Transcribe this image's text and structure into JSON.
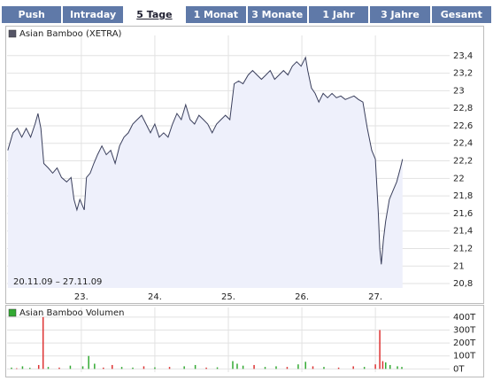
{
  "tabs": {
    "items": [
      "Push",
      "Intraday",
      "5 Tage",
      "1 Monat",
      "3 Monate",
      "1 Jahr",
      "3 Jahre",
      "Gesamt"
    ],
    "active": 2
  },
  "chart_data": [
    {
      "type": "line",
      "date_range": "20.11.09 – 27.11.09",
      "xlim": [
        21.99,
        28.01
      ],
      "xticks": [
        {
          "value": 23,
          "label": "23."
        },
        {
          "value": 24,
          "label": "24."
        },
        {
          "value": 25,
          "label": "25."
        },
        {
          "value": 26,
          "label": "26."
        },
        {
          "value": 27,
          "label": "27."
        }
      ],
      "ylim": [
        20.75,
        23.58
      ],
      "yticks": [
        {
          "value": 20.8,
          "label": "20,8"
        },
        {
          "value": 21,
          "label": "21"
        },
        {
          "value": 21.2,
          "label": "21,2"
        },
        {
          "value": 21.4,
          "label": "21,4"
        },
        {
          "value": 21.6,
          "label": "21,6"
        },
        {
          "value": 21.8,
          "label": "21,8"
        },
        {
          "value": 22,
          "label": "22"
        },
        {
          "value": 22.2,
          "label": "22,2"
        },
        {
          "value": 22.4,
          "label": "22,4"
        },
        {
          "value": 22.6,
          "label": "22,6"
        },
        {
          "value": 22.8,
          "label": "22,8"
        },
        {
          "value": 23,
          "label": "23"
        },
        {
          "value": 23.2,
          "label": "23,2"
        },
        {
          "value": 23.4,
          "label": "23,4"
        }
      ],
      "grid": true,
      "x": [
        22.0,
        22.07,
        22.13,
        22.19,
        22.25,
        22.31,
        22.37,
        22.41,
        22.45,
        22.49,
        22.55,
        22.61,
        22.67,
        22.73,
        22.8,
        22.86,
        22.9,
        22.94,
        22.98,
        23.04,
        23.07,
        23.12,
        23.17,
        23.22,
        23.28,
        23.34,
        23.4,
        23.46,
        23.52,
        23.58,
        23.64,
        23.7,
        23.76,
        23.82,
        23.88,
        23.94,
        24.0,
        24.06,
        24.12,
        24.18,
        24.24,
        24.3,
        24.36,
        24.42,
        24.48,
        24.54,
        24.6,
        24.66,
        24.72,
        24.78,
        24.84,
        24.9,
        24.96,
        25.02,
        25.08,
        25.14,
        25.2,
        25.27,
        25.33,
        25.39,
        25.45,
        25.51,
        25.57,
        25.63,
        25.69,
        25.75,
        25.81,
        25.87,
        25.93,
        25.99,
        26.05,
        26.08,
        26.13,
        26.18,
        26.23,
        26.29,
        26.35,
        26.41,
        26.47,
        26.53,
        26.59,
        26.65,
        26.71,
        26.77,
        26.83,
        26.89,
        26.95,
        27.0,
        27.04,
        27.06,
        27.08,
        27.11,
        27.14,
        27.19,
        27.24,
        27.29,
        27.34,
        27.37
      ],
      "series": [
        {
          "name": "Asian Bamboo (XETRA)",
          "color": "#3a3f5c",
          "fill": "#eef0fb",
          "legend_color": "#555566",
          "values": [
            22.32,
            22.52,
            22.57,
            22.47,
            22.57,
            22.47,
            22.62,
            22.74,
            22.57,
            22.17,
            22.12,
            22.06,
            22.12,
            22.01,
            21.96,
            22.01,
            21.76,
            21.64,
            21.76,
            21.64,
            22.01,
            22.06,
            22.17,
            22.27,
            22.37,
            22.27,
            22.32,
            22.17,
            22.37,
            22.47,
            22.52,
            22.62,
            22.67,
            22.72,
            22.62,
            22.52,
            22.62,
            22.47,
            22.52,
            22.47,
            22.62,
            22.74,
            22.67,
            22.84,
            22.67,
            22.62,
            22.72,
            22.67,
            22.62,
            22.52,
            22.62,
            22.67,
            22.72,
            22.67,
            23.08,
            23.11,
            23.08,
            23.18,
            23.23,
            23.18,
            23.13,
            23.18,
            23.23,
            23.13,
            23.18,
            23.23,
            23.18,
            23.28,
            23.33,
            23.28,
            23.38,
            23.23,
            23.03,
            22.97,
            22.87,
            22.97,
            22.92,
            22.97,
            22.92,
            22.94,
            22.9,
            22.92,
            22.94,
            22.9,
            22.87,
            22.57,
            22.32,
            22.22,
            21.61,
            21.2,
            21.02,
            21.3,
            21.51,
            21.76,
            21.86,
            21.96,
            22.12,
            22.22
          ]
        }
      ]
    },
    {
      "type": "bar",
      "xlim": [
        21.99,
        28.01
      ],
      "xticks": [
        23,
        24,
        25,
        26,
        27
      ],
      "ylim": [
        -25,
        440
      ],
      "yticks": [
        {
          "value": 0,
          "label": "0T"
        },
        {
          "value": 100,
          "label": "100T"
        },
        {
          "value": 200,
          "label": "200T"
        },
        {
          "value": 300,
          "label": "300T"
        },
        {
          "value": 400,
          "label": "400T"
        }
      ],
      "grid": true,
      "x": [
        22.05,
        22.12,
        22.2,
        22.3,
        22.42,
        22.48,
        22.55,
        22.7,
        22.85,
        23.02,
        23.1,
        23.18,
        23.3,
        23.42,
        23.55,
        23.7,
        23.85,
        24.0,
        24.2,
        24.4,
        24.55,
        24.7,
        24.85,
        25.06,
        25.12,
        25.2,
        25.35,
        25.5,
        25.65,
        25.8,
        25.95,
        26.05,
        26.15,
        26.3,
        26.5,
        26.7,
        26.85,
        27.0,
        27.06,
        27.1,
        27.14,
        27.2,
        27.3,
        27.36
      ],
      "series": [
        {
          "name": "Asian Bamboo Volumen",
          "color": "#33aa33",
          "values": [
            10,
            5,
            20,
            8,
            30,
            400,
            15,
            10,
            25,
            20,
            100,
            40,
            10,
            30,
            15,
            10,
            20,
            12,
            15,
            20,
            30,
            10,
            12,
            60,
            40,
            25,
            30,
            15,
            20,
            15,
            35,
            55,
            20,
            15,
            10,
            20,
            15,
            35,
            300,
            60,
            50,
            30,
            20,
            15
          ],
          "bar_colors": [
            "#3a3",
            "#d33",
            "#3a3",
            "#3a3",
            "#d33",
            "#d33",
            "#3a3",
            "#d33",
            "#3a3",
            "#3a3",
            "#3a3",
            "#3a3",
            "#d33",
            "#d33",
            "#3a3",
            "#3a3",
            "#d33",
            "#3a3",
            "#d33",
            "#3a3",
            "#3a3",
            "#d33",
            "#3a3",
            "#3a3",
            "#3a3",
            "#3a3",
            "#d33",
            "#3a3",
            "#3a3",
            "#d33",
            "#3a3",
            "#3a3",
            "#d33",
            "#3a3",
            "#d33",
            "#d33",
            "#3a3",
            "#d33",
            "#d33",
            "#d33",
            "#3a3",
            "#3a3",
            "#3a3",
            "#3a3"
          ]
        }
      ]
    }
  ]
}
